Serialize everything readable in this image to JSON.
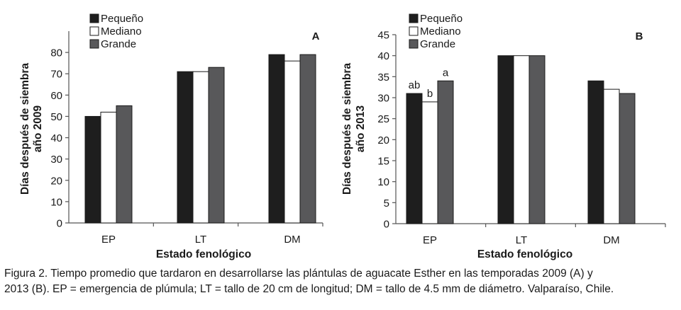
{
  "chart_data": [
    {
      "type": "bar",
      "panel_label": "A",
      "categories": [
        "EP",
        "LT",
        "DM"
      ],
      "series": [
        {
          "name": "Pequeño",
          "color": "#1e1e1e",
          "values": [
            50,
            71,
            79
          ]
        },
        {
          "name": "Mediano",
          "color": "#ffffff",
          "values": [
            52,
            71,
            76
          ]
        },
        {
          "name": "Grande",
          "color": "#58585a",
          "values": [
            55,
            73,
            79
          ]
        }
      ],
      "data_labels": [],
      "xlabel": "Estado fenológico",
      "ylabel_line1": "Días después de siembra",
      "ylabel_line2": "año 2009",
      "ylim": [
        0,
        90
      ],
      "yticks": [
        0,
        10,
        20,
        30,
        40,
        50,
        60,
        70,
        80
      ],
      "ytick_labels": [
        "0",
        "10",
        "20",
        "30",
        "40",
        "50",
        "60",
        "70",
        "80"
      ],
      "legend": "top-left",
      "grid": false
    },
    {
      "type": "bar",
      "panel_label": "B",
      "categories": [
        "EP",
        "LT",
        "DM"
      ],
      "series": [
        {
          "name": "Pequeño",
          "color": "#1e1e1e",
          "values": [
            31,
            40,
            34
          ]
        },
        {
          "name": "Mediano",
          "color": "#ffffff",
          "values": [
            29,
            40,
            32
          ]
        },
        {
          "name": "Grande",
          "color": "#58585a",
          "values": [
            34,
            40,
            31
          ]
        }
      ],
      "data_labels": [
        {
          "category": 0,
          "series": 0,
          "text": "ab"
        },
        {
          "category": 0,
          "series": 1,
          "text": "b"
        },
        {
          "category": 0,
          "series": 2,
          "text": "a"
        }
      ],
      "xlabel": "Estado fenológico",
      "ylabel_line1": "Días después de siembra",
      "ylabel_line2": "año 2013",
      "ylim": [
        0,
        45
      ],
      "yticks": [
        0,
        5,
        10,
        15,
        20,
        25,
        30,
        35,
        40,
        45
      ],
      "ytick_labels": [
        "0",
        "5",
        "10",
        "15",
        "20",
        "25",
        "30",
        "35",
        "40",
        "45"
      ],
      "legend": "top-left",
      "grid": false
    }
  ],
  "caption": {
    "line1": "Figura 2. Tiempo promedio que tardaron en desarrollarse las plántulas de aguacate Esther en las temporadas 2009 (A) y",
    "line2": "2013 (B). EP = emergencia de plúmula; LT = tallo de 20 cm de longitud; DM = tallo de 4.5 mm de diámetro. Valparaíso, Chile."
  }
}
